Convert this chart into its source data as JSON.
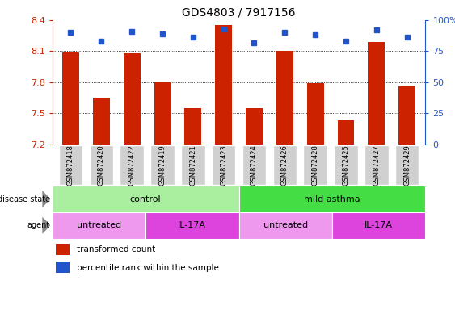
{
  "title": "GDS4803 / 7917156",
  "samples": [
    "GSM872418",
    "GSM872420",
    "GSM872422",
    "GSM872419",
    "GSM872421",
    "GSM872423",
    "GSM872424",
    "GSM872426",
    "GSM872428",
    "GSM872425",
    "GSM872427",
    "GSM872429"
  ],
  "transformed_count": [
    8.09,
    7.65,
    8.08,
    7.8,
    7.55,
    8.35,
    7.55,
    8.1,
    7.79,
    7.43,
    8.19,
    7.76
  ],
  "percentile_rank": [
    90,
    83,
    91,
    89,
    86,
    93,
    82,
    90,
    88,
    83,
    92,
    86
  ],
  "ylim_left": [
    7.2,
    8.4
  ],
  "ylim_right": [
    0,
    100
  ],
  "yticks_left": [
    7.2,
    7.5,
    7.8,
    8.1,
    8.4
  ],
  "ytick_labels_left": [
    "7.2",
    "7.5",
    "7.8",
    "8.1",
    "8.4"
  ],
  "yticks_right": [
    0,
    25,
    50,
    75,
    100
  ],
  "ytick_labels_right": [
    "0",
    "25",
    "50",
    "75",
    "100%"
  ],
  "bar_color": "#cc2200",
  "dot_color": "#2255cc",
  "grid_yticks": [
    7.5,
    7.8,
    8.1
  ],
  "disease_state_groups": [
    {
      "label": "control",
      "start": 0,
      "end": 6,
      "color": "#aaeea0"
    },
    {
      "label": "mild asthma",
      "start": 6,
      "end": 12,
      "color": "#44dd44"
    }
  ],
  "agent_groups": [
    {
      "label": "untreated",
      "start": 0,
      "end": 3,
      "color": "#ee99ee"
    },
    {
      "label": "IL-17A",
      "start": 3,
      "end": 6,
      "color": "#dd44dd"
    },
    {
      "label": "untreated",
      "start": 6,
      "end": 9,
      "color": "#ee99ee"
    },
    {
      "label": "IL-17A",
      "start": 9,
      "end": 12,
      "color": "#dd44dd"
    }
  ],
  "legend_items": [
    {
      "color": "#cc2200",
      "marker": "s",
      "label": "transformed count"
    },
    {
      "color": "#2255cc",
      "marker": "s",
      "label": "percentile rank within the sample"
    }
  ],
  "bar_width": 0.55,
  "tick_area_color": "#d0d0d0",
  "ylabel_left_color": "#cc2200",
  "ylabel_right_color": "#2255cc"
}
